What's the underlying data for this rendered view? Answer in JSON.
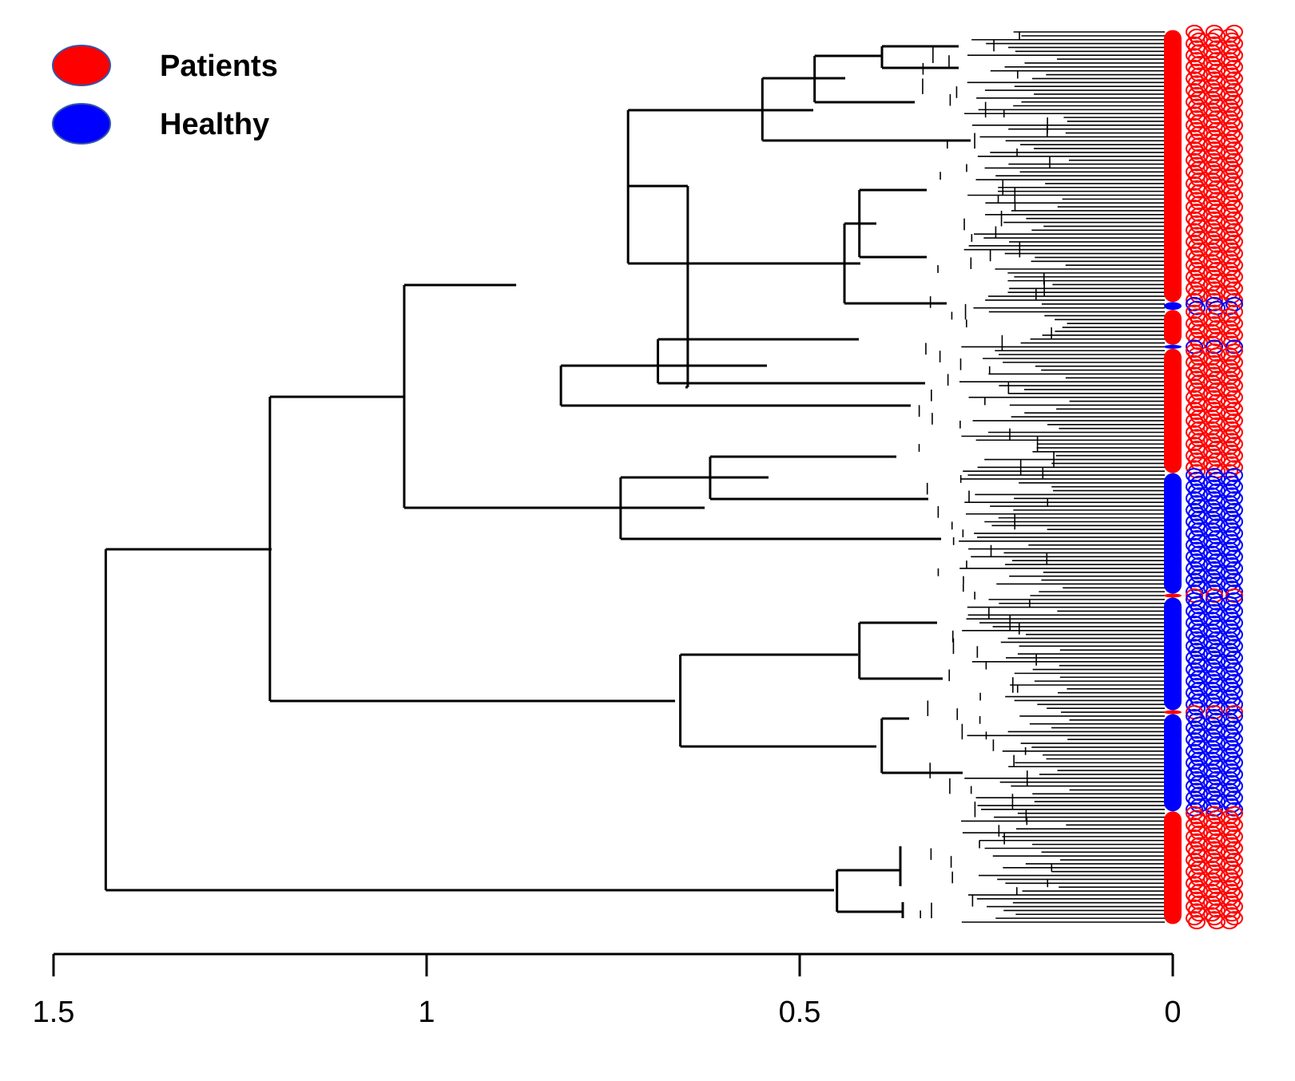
{
  "chart_data": {
    "type": "dendrogram",
    "title": "",
    "xlabel": "",
    "ylabel": "",
    "x_axis": {
      "reversed": true,
      "range": [
        1.5,
        0
      ],
      "ticks": [
        1.5,
        1,
        0.5,
        0
      ],
      "tick_labels": [
        "1.5",
        "1",
        "0.5",
        "0"
      ]
    },
    "legend": {
      "position": "top-left",
      "entries": [
        {
          "label": "Patients",
          "color": "#ff0000"
        },
        {
          "label": "Healthy",
          "color": "#0000ff"
        }
      ]
    },
    "leaf_groups": [
      {
        "group": "Patients",
        "leaves": 70,
        "color": "#ff0000"
      },
      {
        "group": "Healthy",
        "leaves": 2,
        "color": "#0000ff"
      },
      {
        "group": "Patients",
        "leaves": 9,
        "color": "#ff0000"
      },
      {
        "group": "Healthy",
        "leaves": 1,
        "color": "#0000ff"
      },
      {
        "group": "Patients",
        "leaves": 32,
        "color": "#ff0000"
      },
      {
        "group": "Healthy",
        "leaves": 31,
        "color": "#0000ff"
      },
      {
        "group": "Patients",
        "leaves": 1,
        "color": "#ff0000"
      },
      {
        "group": "Healthy",
        "leaves": 29,
        "color": "#0000ff"
      },
      {
        "group": "Patients",
        "leaves": 1,
        "color": "#ff0000"
      },
      {
        "group": "Healthy",
        "leaves": 25,
        "color": "#0000ff"
      },
      {
        "group": "Patients",
        "leaves": 29,
        "color": "#ff0000"
      }
    ],
    "merge_heights": {
      "root": 1.43,
      "node_A_main": 1.21,
      "node_A1": 1.03,
      "node_A1a": 0.88,
      "node_A1a_i": 0.73,
      "node_A1a_i_top": 0.48,
      "node_A1a_i_bottom": 0.42,
      "node_A1a_ii": 0.65,
      "node_A1b": 0.62,
      "node_A2_healthy": 0.66,
      "node_A2_healthy_top": 0.42,
      "node_A2_healthy_bottom": 0.39,
      "node_B_patients": 0.45
    },
    "colors": {
      "branch": "#000000",
      "patients": "#ff0000",
      "healthy": "#0000ff"
    }
  }
}
